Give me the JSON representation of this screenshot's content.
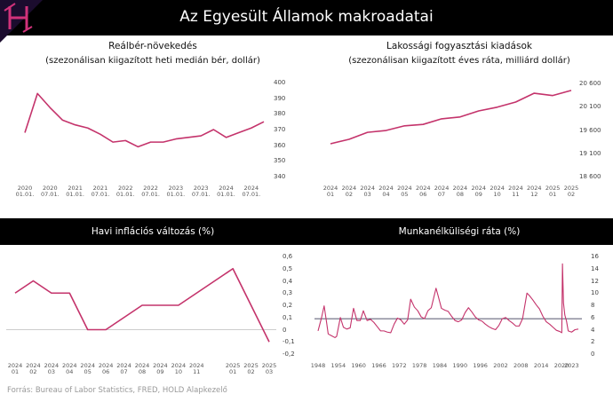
{
  "title": "Az Egyesült Államok makroadatai",
  "source": "Forrás: Bureau of Labor Statistics, FRED, HOLD Alapkezelő",
  "chart_data": [
    {
      "type": "line",
      "title": "Reálbér-növekedés",
      "subtitle": "(szezonálisan kiigazított heti medián bér, dollár)",
      "categories": [
        "2020\n01.01.",
        null,
        "2020\n07.01.",
        null,
        "2021\n01.01.",
        null,
        "2021\n07.01.",
        null,
        "2022\n01.01.",
        null,
        "2022\n07.01.",
        null,
        "2023\n01.01.",
        null,
        "2023\n07.01.",
        null,
        "2024\n01.01.",
        null,
        "2024\n07.01.",
        null
      ],
      "values": [
        368,
        393,
        384,
        376,
        373,
        371,
        367,
        362,
        363,
        359,
        362,
        362,
        364,
        365,
        366,
        370,
        365,
        368,
        371,
        375
      ],
      "color": "#c4336b",
      "ylim": [
        340,
        400
      ],
      "yticks": [
        340,
        350,
        360,
        370,
        380,
        390,
        400
      ]
    },
    {
      "type": "line",
      "title": "Lakossági fogyasztási kiadások",
      "subtitle": "(szezonálisan kiigazított éves ráta, milliárd dollár)",
      "categories": [
        "2024\n01",
        "2024\n02",
        "2024\n03",
        "2024\n04",
        "2024\n05",
        "2024\n06",
        "2024\n07",
        "2024\n08",
        "2024\n09",
        "2024\n10",
        "2024\n11",
        "2024\n12",
        "2025\n01",
        "2025\n02"
      ],
      "values": [
        19305,
        19400,
        19550,
        19590,
        19690,
        19720,
        19840,
        19880,
        20010,
        20090,
        20200,
        20390,
        20340,
        20450
      ],
      "color": "#c4336b",
      "ylim": [
        18600,
        20600
      ],
      "yticks": [
        {
          "value": 18600,
          "label": "18 600"
        },
        {
          "value": 19100,
          "label": "19 100"
        },
        {
          "value": 19600,
          "label": "19 600"
        },
        {
          "value": 20100,
          "label": "20 100"
        },
        {
          "value": 20600,
          "label": "20 600"
        }
      ]
    },
    {
      "type": "line",
      "title": "Havi inflációs változás (%)",
      "categories": [
        "2024\n01",
        "2024\n02",
        "2024\n03",
        "2024\n04",
        "2024\n05",
        "2024\n06",
        "2024\n07",
        "2024\n08",
        "2024\n09",
        "2024\n10",
        "2024\n11",
        null,
        "2025\n01",
        "2025\n02",
        "2025\n03"
      ],
      "values": [
        0.3,
        0.4,
        0.3,
        0.3,
        0.0,
        0.0,
        0.1,
        0.2,
        0.2,
        0.2,
        0.3,
        0.4,
        0.5,
        0.2,
        -0.1
      ],
      "color": "#c4336b",
      "ylim": [
        -0.2,
        0.6
      ],
      "yticks": [
        {
          "value": -0.2,
          "label": "-0,2"
        },
        {
          "value": -0.1,
          "label": "-0,1"
        },
        0,
        {
          "value": 0.1,
          "label": "0,1"
        },
        {
          "value": 0.2,
          "label": "0,2"
        },
        {
          "value": 0.3,
          "label": "0,3"
        },
        {
          "value": 0.4,
          "label": "0,4"
        },
        {
          "value": 0.5,
          "label": "0,5"
        },
        {
          "value": 0.6,
          "label": "0,6"
        }
      ],
      "zero_line": true
    },
    {
      "type": "line",
      "title": "Munkanélküliségi ráta (%)",
      "x": [
        1948,
        1949,
        1949.8,
        1950.5,
        1951,
        1952,
        1953,
        1953.5,
        1954.6,
        1955.5,
        1956.5,
        1957.5,
        1958.5,
        1959.5,
        1960.5,
        1961.4,
        1962.5,
        1963.5,
        1964.5,
        1965.5,
        1966.5,
        1967.5,
        1968.5,
        1969.5,
        1970.5,
        1971.5,
        1972.5,
        1973.5,
        1974.5,
        1975.4,
        1976.5,
        1977.5,
        1978.5,
        1979.5,
        1980.5,
        1981.5,
        1982.9,
        1983.5,
        1984.5,
        1985.5,
        1986.5,
        1987.5,
        1988.5,
        1989.5,
        1990.5,
        1991.5,
        1992.5,
        1993.5,
        1994.5,
        1995.5,
        1996.5,
        1997.5,
        1998.5,
        1999.5,
        2000.5,
        2001.5,
        2002.5,
        2003.5,
        2004.5,
        2005.5,
        2006.5,
        2007.5,
        2008.5,
        2009.8,
        2010.5,
        2011.5,
        2012.5,
        2013.5,
        2014.5,
        2015.5,
        2016.5,
        2017.5,
        2018.5,
        2019.5,
        2020.1,
        2020.3,
        2020.6,
        2021,
        2021.5,
        2022,
        2023,
        2024,
        2025
      ],
      "values": [
        3.8,
        5.9,
        7.9,
        5.3,
        3.3,
        3.0,
        2.7,
        2.9,
        6.0,
        4.4,
        4.1,
        4.3,
        7.5,
        5.5,
        5.5,
        7.1,
        5.5,
        5.7,
        5.2,
        4.5,
        3.8,
        3.8,
        3.6,
        3.5,
        4.9,
        5.9,
        5.6,
        4.9,
        5.6,
        9.0,
        7.7,
        7.1,
        6.1,
        5.8,
        7.1,
        7.6,
        10.8,
        9.6,
        7.5,
        7.2,
        7.0,
        6.2,
        5.5,
        5.3,
        5.6,
        6.8,
        7.6,
        6.9,
        6.1,
        5.6,
        5.4,
        4.9,
        4.5,
        4.2,
        4.0,
        4.7,
        5.8,
        6.0,
        5.5,
        5.1,
        4.6,
        4.6,
        5.8,
        10.0,
        9.6,
        8.9,
        8.1,
        7.4,
        6.2,
        5.3,
        4.9,
        4.4,
        3.9,
        3.7,
        3.5,
        14.8,
        8.4,
        6.4,
        5.4,
        3.8,
        3.6,
        4.0,
        4.1
      ],
      "color": "#c4336b",
      "xlim": [
        1948,
        2025
      ],
      "xticks": [
        1948,
        1954,
        1960,
        1966,
        1972,
        1978,
        1984,
        1990,
        1996,
        2002,
        2008,
        2014,
        2020,
        2023
      ],
      "ylim": [
        0,
        16
      ],
      "yticks": [
        0,
        2,
        4,
        6,
        8,
        10,
        12,
        14,
        16
      ],
      "reference_line": 5.8
    }
  ]
}
